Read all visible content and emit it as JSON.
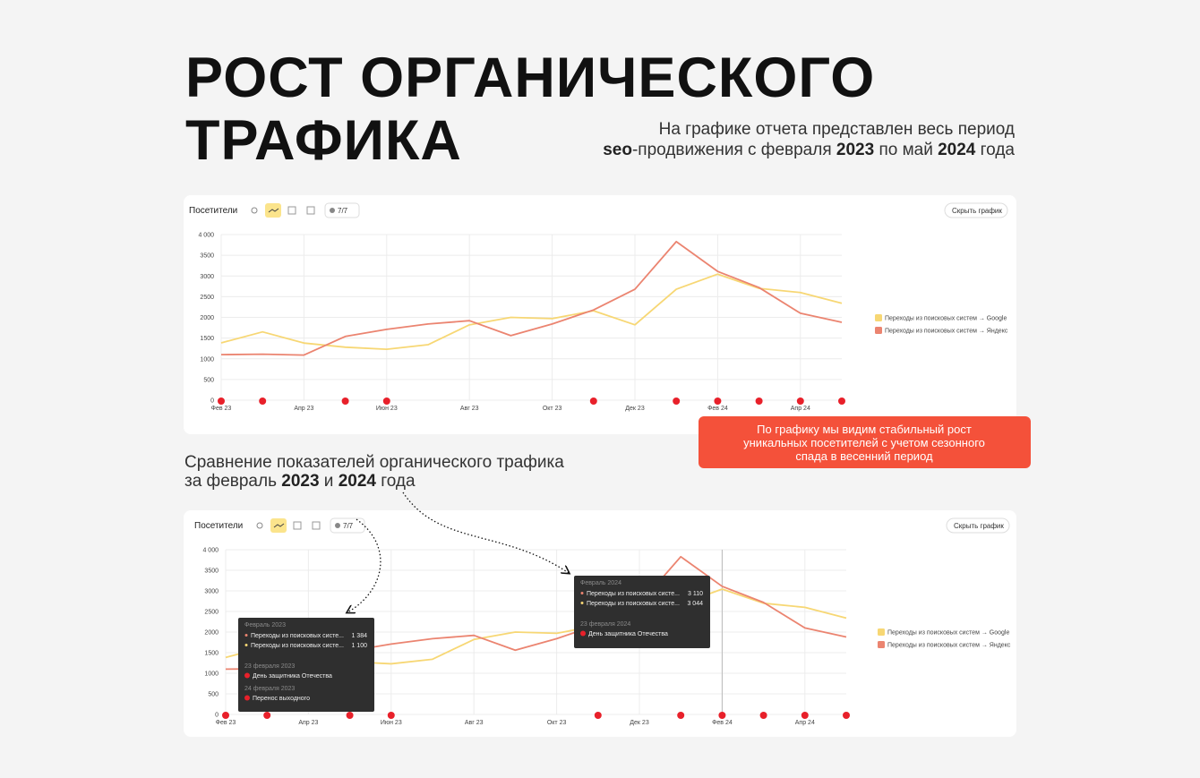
{
  "header": {
    "title_lines": [
      "РОСТ ОРГАНИЧЕСКОГО",
      "ТРАФИКА"
    ],
    "subtitle_line1": "На графике отчета представлен весь период",
    "subtitle_line2": [
      "seo",
      "-продвижения с февраля ",
      "2023",
      " по май ",
      "2024",
      " года"
    ]
  },
  "callout": [
    "По графику мы видим стабильный рост",
    "уникальных посетителей с учетом сезонного",
    "спада в весенний период"
  ],
  "comparison": {
    "line1": "Сравнение показателей органического трафика",
    "line2": [
      "за февраль ",
      "2023",
      " и ",
      "2024",
      " года"
    ]
  },
  "chart_data": [
    {
      "type": "line",
      "toolbar": {
        "label": "Посетители",
        "counter": "7/7",
        "button": "Скрыть график"
      },
      "categories": [
        "Фев 23",
        null,
        "Апр 23",
        null,
        "Июн 23",
        null,
        "Авг 23",
        null,
        "Окт 23",
        null,
        "Дек 23",
        null,
        "Фев 24",
        null,
        "Апр 24",
        null
      ],
      "series": [
        {
          "name": "Переходы из поисковых систем → Google",
          "color": "#f7d774",
          "values": [
            1384,
            1650,
            1380,
            1280,
            1230,
            1340,
            1820,
            2000,
            1970,
            2160,
            1820,
            2680,
            3044,
            2700,
            2600,
            2340
          ]
        },
        {
          "name": "Переходы из поисковых систем → Яндекс",
          "color": "#eb8470",
          "values": [
            1100,
            1110,
            1090,
            1540,
            1710,
            1840,
            1920,
            1560,
            1840,
            2180,
            2680,
            3830,
            3110,
            2720,
            2100,
            1880
          ]
        }
      ],
      "ylim": [
        0,
        4000
      ],
      "yticks": [
        0,
        500,
        1000,
        1500,
        2000,
        2500,
        3000,
        3500,
        {
          "value": 4000,
          "label": "4 000"
        }
      ],
      "grid": true
    },
    {
      "type": "line",
      "toolbar": {
        "label": "Посетители",
        "counter": "7/7",
        "button": "Скрыть график"
      },
      "categories": [
        "Фев 23",
        null,
        "Апр 23",
        null,
        "Июн 23",
        null,
        "Авг 23",
        null,
        "Окт 23",
        null,
        "Дек 23",
        null,
        "Фев 24",
        null,
        "Апр 24",
        null
      ],
      "series": [
        {
          "name": "Переходы из поисковых систем → Google",
          "color": "#f7d774",
          "values": [
            1384,
            1650,
            1380,
            1280,
            1230,
            1340,
            1820,
            2000,
            1970,
            2160,
            1820,
            2680,
            3044,
            2700,
            2600,
            2340
          ]
        },
        {
          "name": "Переходы из поисковых систем → Яндекс",
          "color": "#eb8470",
          "values": [
            1100,
            1110,
            1090,
            1540,
            1710,
            1840,
            1920,
            1560,
            1840,
            2180,
            2680,
            3830,
            3110,
            2720,
            2100,
            1880
          ]
        }
      ],
      "ylim": [
        0,
        4000
      ],
      "yticks": [
        0,
        500,
        1000,
        1500,
        2000,
        2500,
        3000,
        3500,
        {
          "value": 4000,
          "label": "4 000"
        }
      ],
      "grid": true
    }
  ],
  "tooltips": [
    {
      "header": "Февраль 2023",
      "rows": [
        [
          "Переходы из поисковых систе...",
          "1 384"
        ],
        [
          "Переходы из поисковых систе...",
          "1 100"
        ]
      ],
      "events": [
        [
          "23 февраля 2023",
          "День защитника Отечества"
        ],
        [
          "24 февраля 2023",
          "Перенос выходного"
        ]
      ]
    },
    {
      "header": "Февраль 2024",
      "rows": [
        [
          "Переходы из поисковых систе...",
          "3 110"
        ],
        [
          "Переходы из поисковых систе...",
          "3 044"
        ]
      ],
      "events": [
        [
          "23 февраля 2024",
          "День защитника Отечества"
        ]
      ]
    }
  ]
}
